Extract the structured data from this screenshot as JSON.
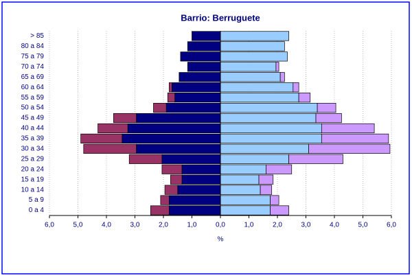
{
  "chart_data": {
    "type": "pyramid",
    "title": "Barrio: Berruguete",
    "x_label": "%",
    "categories": [
      "> 85",
      "80 a 84",
      "75 a 79",
      "70 a 74",
      "65 a 69",
      "60 a 64",
      "55 a 59",
      "50 a 54",
      "45 a 49",
      "40 a 44",
      "35 a 39",
      "30 a 34",
      "25 a 29",
      "20 a 24",
      "15 a 19",
      "10 a 14",
      "5 a 9",
      "0 a 4"
    ],
    "series": [
      {
        "color": "#000080",
        "values": [
          -1.0,
          -1.15,
          -1.4,
          -1.15,
          -1.45,
          -1.7,
          -1.6,
          -1.9,
          -2.95,
          -3.25,
          -3.45,
          -2.95,
          -2.05,
          -1.35,
          -1.35,
          -1.5,
          -1.8,
          -1.8
        ]
      },
      {
        "color": "#993366",
        "values": [
          0,
          0,
          0,
          0,
          0,
          -0.1,
          -0.25,
          -0.45,
          -0.8,
          -1.05,
          -1.45,
          -1.85,
          -1.15,
          -0.7,
          -0.4,
          -0.45,
          -0.3,
          -0.65
        ]
      },
      {
        "color": "#99ccff",
        "values": [
          2.4,
          2.25,
          2.35,
          1.95,
          2.1,
          2.55,
          2.75,
          3.4,
          3.35,
          3.55,
          3.55,
          3.1,
          2.4,
          1.6,
          1.35,
          1.4,
          1.75,
          1.75
        ]
      },
      {
        "color": "#cc99ff",
        "values": [
          0,
          0,
          0,
          0.1,
          0.15,
          0.2,
          0.4,
          0.65,
          0.9,
          1.85,
          2.35,
          2.85,
          1.9,
          0.9,
          0.5,
          0.4,
          0.3,
          0.65
        ]
      }
    ],
    "xlim": [
      -6,
      6
    ],
    "xticks": [
      {
        "value": -6,
        "label": "6,0"
      },
      {
        "value": -5,
        "label": "5,0"
      },
      {
        "value": -4,
        "label": "4,0"
      },
      {
        "value": -3,
        "label": "3,0"
      },
      {
        "value": -2,
        "label": "2,0"
      },
      {
        "value": -1,
        "label": "1,0"
      },
      {
        "value": 0,
        "label": "0,0"
      },
      {
        "value": 1,
        "label": "1,0"
      },
      {
        "value": 2,
        "label": "2,0"
      },
      {
        "value": 3,
        "label": "3,0"
      },
      {
        "value": 4,
        "label": "4,0"
      },
      {
        "value": 5,
        "label": "5,0"
      },
      {
        "value": 6,
        "label": "6,0"
      }
    ],
    "grid": true
  }
}
